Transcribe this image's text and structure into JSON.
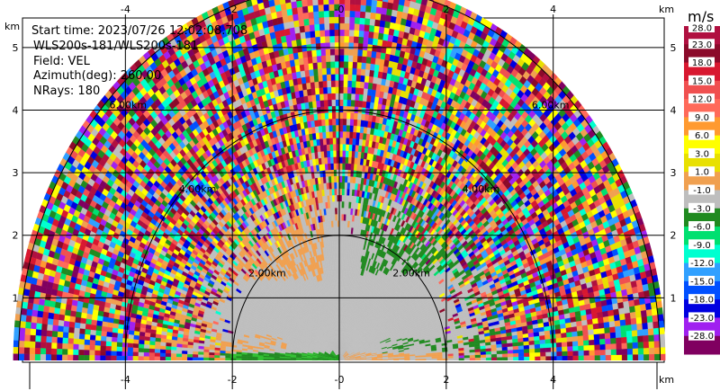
{
  "info": {
    "start_time": "Start time: 2023/07/26 12:02:08.708",
    "instrument": "WLS200s-181/WLS200s-181",
    "field": "Field: VEL",
    "azimuth": "Azimuth(deg): 260.00",
    "nrays": "NRays: 180"
  },
  "chart_data": {
    "type": "heatmap",
    "projection": "RHI half-disc",
    "x_unit": "km",
    "y_unit": "km",
    "xlim": [
      -6.0,
      6.0
    ],
    "ylim": [
      0,
      5.5
    ],
    "x_ticks": [
      -4,
      -2,
      0,
      2,
      4
    ],
    "x_tick_labels": [
      "-4",
      "-2",
      "-0",
      "2",
      "4"
    ],
    "y_ticks": [
      1,
      2,
      3,
      4,
      5
    ],
    "y_tick_labels": [
      "1",
      "2",
      "3",
      "4",
      "5"
    ],
    "grid": true,
    "range_rings_km": [
      2,
      4,
      6
    ],
    "range_ring_labels": [
      "2.00km",
      "4.00km",
      "6.00km"
    ],
    "max_range_km": 6.1,
    "colorbar": {
      "unit": "m/s",
      "levels": [
        28.0,
        23.0,
        18.0,
        15.0,
        12.0,
        9.0,
        6.0,
        3.0,
        1.0,
        -1.0,
        -3.0,
        -6.0,
        -9.0,
        -12.0,
        -15.0,
        -18.0,
        -23.0,
        -28.0
      ],
      "level_labels": [
        "28.0",
        "23.0",
        "18.0",
        "15.0",
        "12.0",
        "9.0",
        "6.0",
        "3.0",
        "1.0",
        "-1.0",
        "-3.0",
        "-6.0",
        "-9.0",
        "-12.0",
        "-15.0",
        "-18.0",
        "-23.0",
        "-28.0"
      ],
      "colors": [
        "#b01040",
        "#8b0a2a",
        "#d81830",
        "#f05050",
        "#ff6a5a",
        "#ff9a30",
        "#ffff00",
        "#e8e000",
        "#f0a050",
        "#bebebe",
        "#208a20",
        "#00e070",
        "#00ffd0",
        "#30a0ff",
        "#0050ff",
        "#0000e0",
        "#a020f0",
        "#800060"
      ]
    }
  }
}
